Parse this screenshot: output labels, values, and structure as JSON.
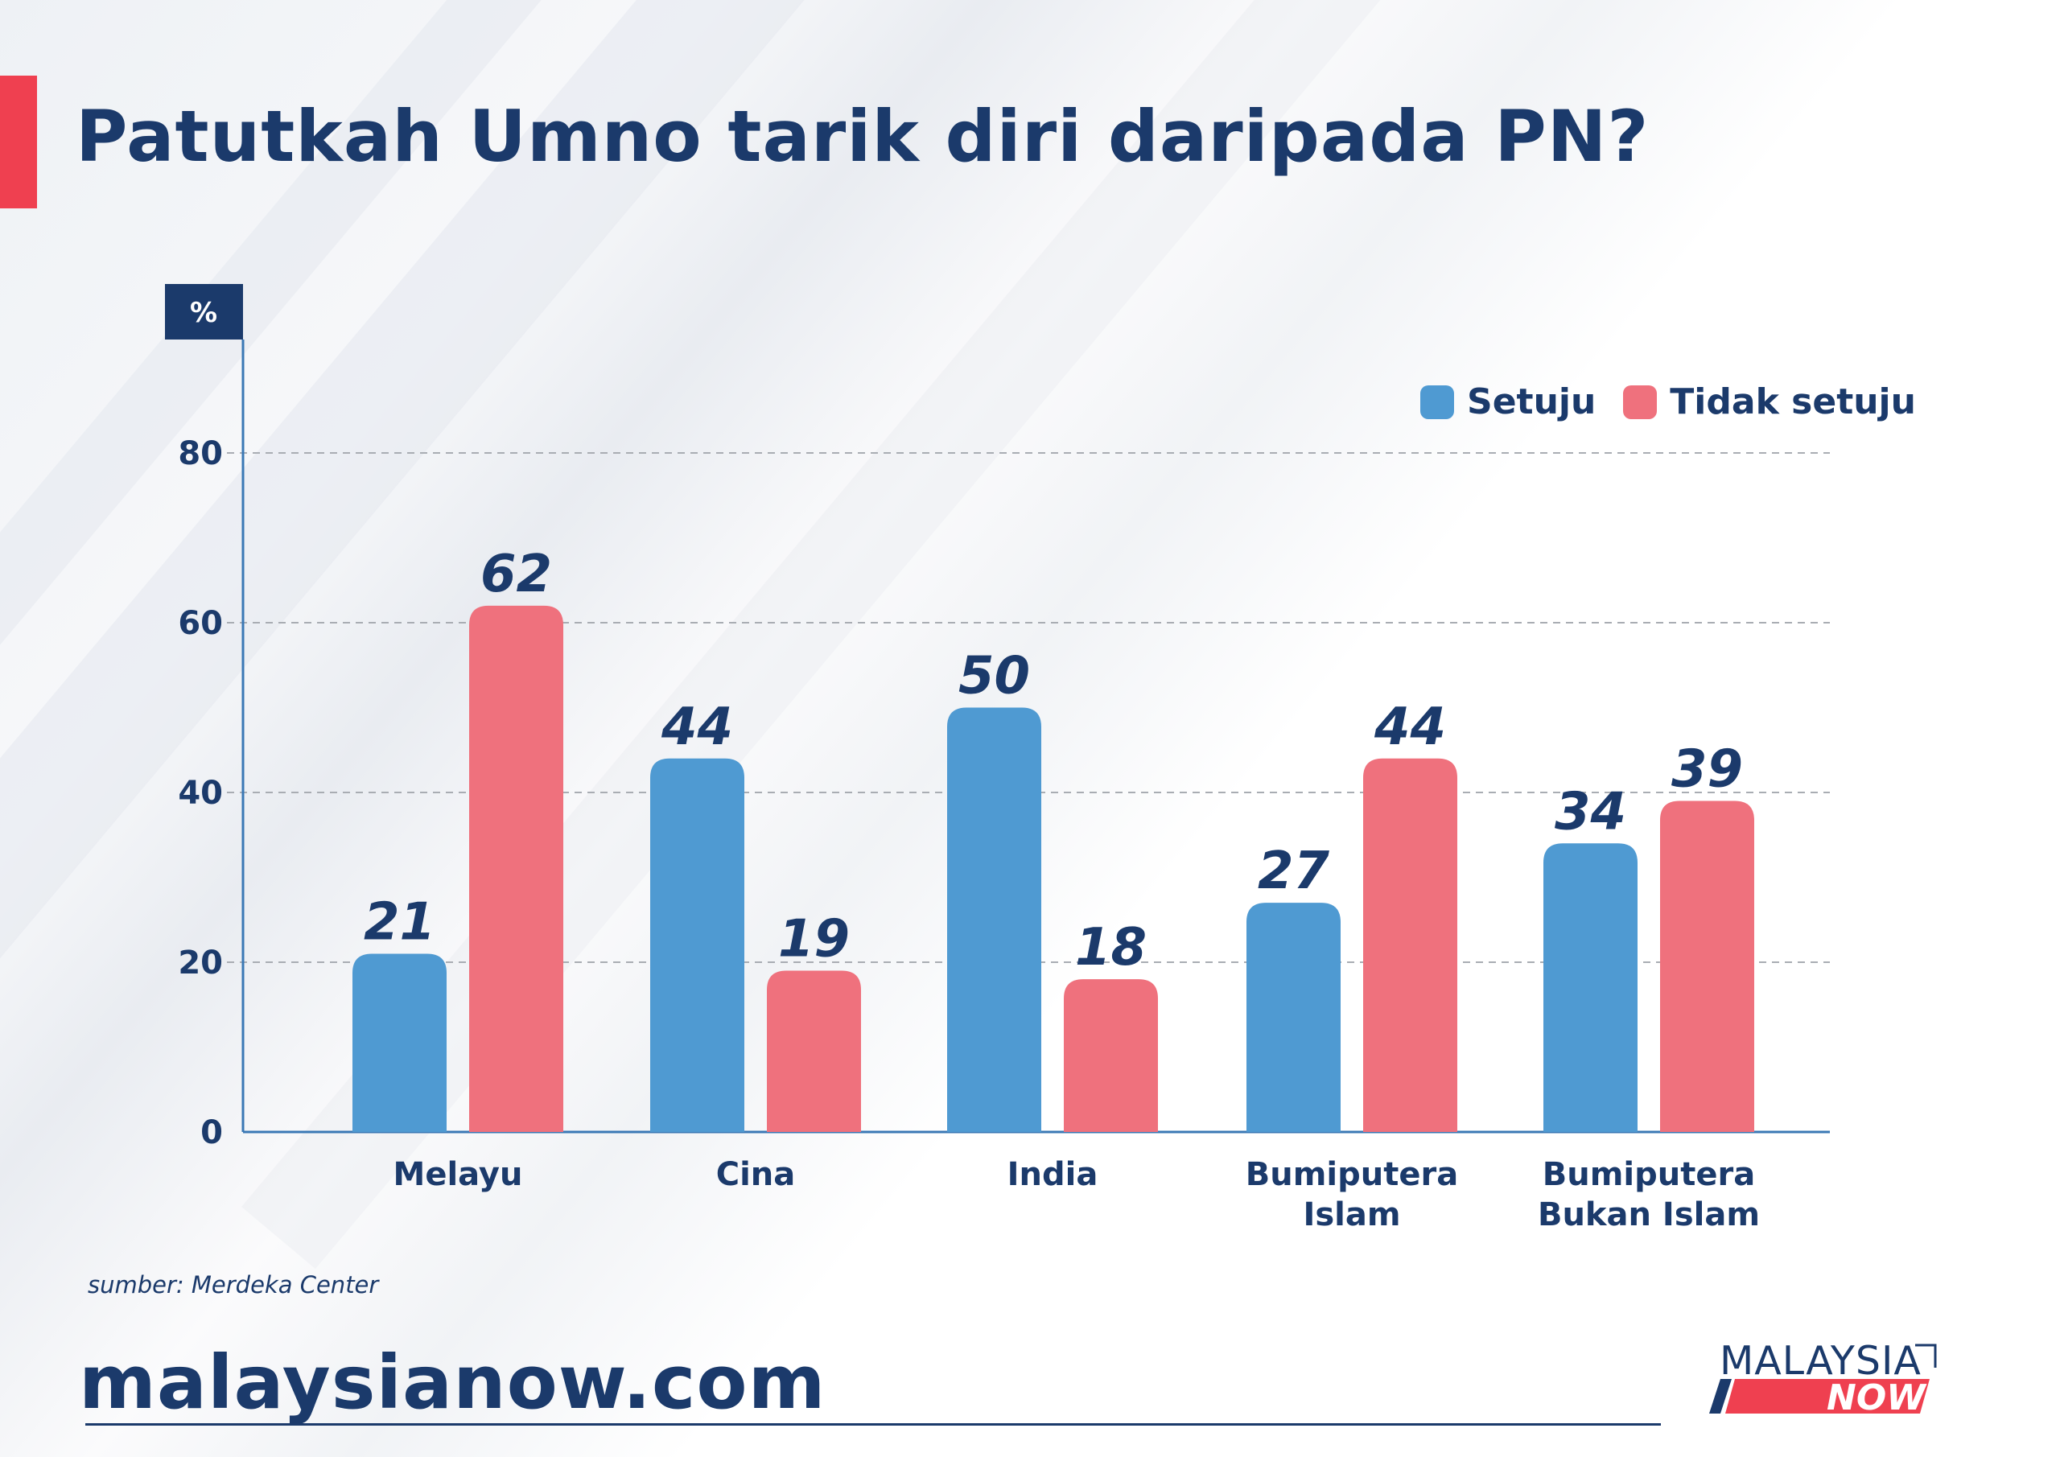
{
  "title": "Patutkah Umno tarik diri daripada PN?",
  "source": "sumber: Merdeka Center",
  "site": "malaysianow.com",
  "logo": {
    "line1": "MALAYSIA",
    "line2": "NOW"
  },
  "colors": {
    "navy": "#1b3a6b",
    "setuju": "#4f9ad2",
    "tidak_setuju": "#ef717d",
    "accent": "#ef4050"
  },
  "chart_data": {
    "type": "bar",
    "title": "Patutkah Umno tarik diri daripada PN?",
    "ylabel": "%",
    "xlabel": "",
    "ylim": [
      0,
      90
    ],
    "yticks": [
      "0",
      "20",
      "40",
      "60",
      "80"
    ],
    "grid": true,
    "legend_position": "top-right",
    "categories": [
      [
        "Melayu"
      ],
      [
        "Cina"
      ],
      [
        "India"
      ],
      [
        "Bumiputera",
        "Islam"
      ],
      [
        "Bumiputera",
        "Bukan Islam"
      ]
    ],
    "series": [
      {
        "name": "Setuju",
        "values": [
          21,
          44,
          50,
          27,
          34
        ]
      },
      {
        "name": "Tidak setuju",
        "values": [
          62,
          19,
          18,
          44,
          39
        ]
      }
    ]
  }
}
